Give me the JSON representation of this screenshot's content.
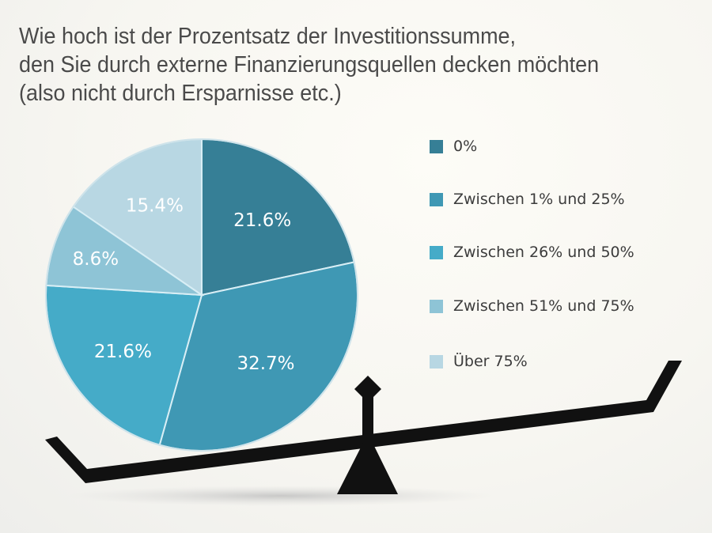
{
  "chart_data": {
    "type": "pie",
    "title_lines": [
      "Wie hoch ist der Prozentsatz der Investitionssumme,",
      "den Sie durch externe Finanzierungsquellen decken möchten",
      "(also nicht durch Ersparnisse etc.)"
    ],
    "categories": [
      "0%",
      "Zwischen 1% und 25%",
      "Zwischen 26% und 50%",
      "Zwischen 51% und 75%",
      "Über 75%"
    ],
    "values": [
      21.6,
      32.7,
      21.6,
      8.6,
      15.4
    ],
    "data_labels": [
      "21.6%",
      "32.7%",
      "21.6%",
      "8.6%",
      "15.4%"
    ],
    "colors": [
      "#367f96",
      "#3f98b4",
      "#45abc8",
      "#8ec4d6",
      "#b8d7e3"
    ],
    "start_angle": "12 o'clock",
    "direction": "clockwise",
    "legend_position": "right"
  }
}
